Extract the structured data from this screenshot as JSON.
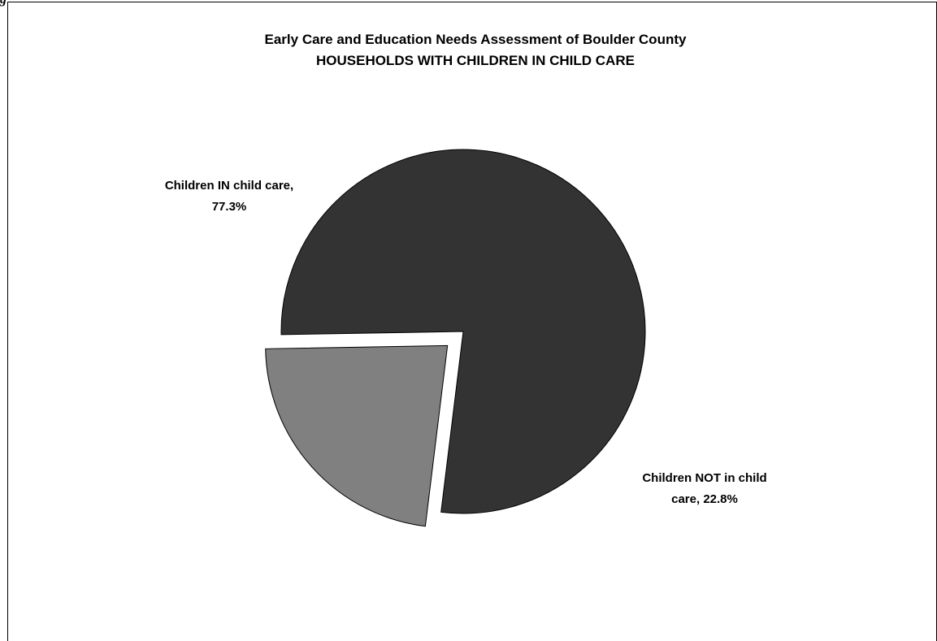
{
  "figure_prefix": "g",
  "chart_data": {
    "type": "pie",
    "title": "Early Care and Education Needs Assessment of Boulder County",
    "subtitle": "HOUSEHOLDS WITH CHILDREN IN CHILD CARE",
    "slices": [
      {
        "label": "Children IN child care",
        "value": 77.3,
        "label_text": [
          "Children IN child care,",
          "77.3%"
        ],
        "color": "#333333",
        "exploded": false
      },
      {
        "label": "Children NOT in child care",
        "value": 22.8,
        "label_text": [
          "Children NOT in child",
          "care, 22.8%"
        ],
        "color": "#808080",
        "exploded": true
      }
    ],
    "legend": "none",
    "grid": false
  }
}
